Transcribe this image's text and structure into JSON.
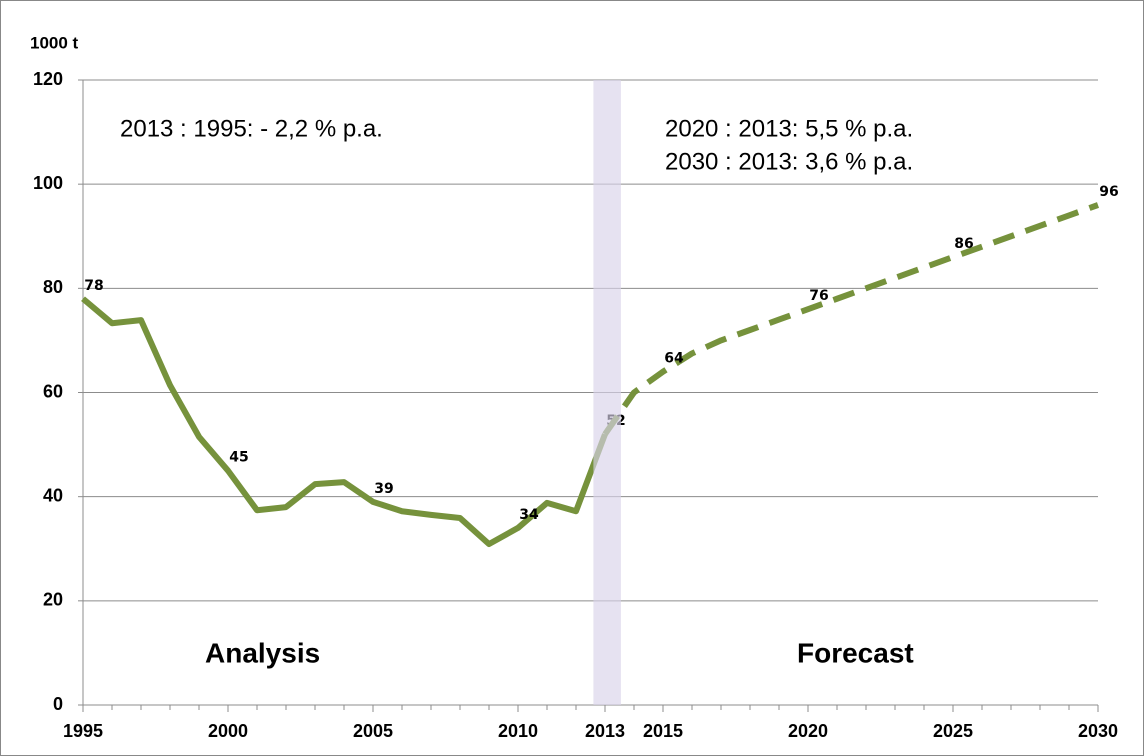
{
  "chart_data": {
    "type": "line",
    "y_label": "1000 t",
    "xlim": [
      1995,
      2030
    ],
    "xticks": [
      1995,
      2000,
      2005,
      2010,
      2013,
      2015,
      2020,
      2025,
      2030
    ],
    "ylim": [
      0,
      120
    ],
    "yticks": [
      0,
      20,
      40,
      60,
      80,
      100,
      120
    ],
    "grid": true,
    "highlight_band": {
      "x": [
        2012.6,
        2013.55
      ],
      "color": "#d9d2e9"
    },
    "series": [
      {
        "color": "#76923c",
        "dashed": false,
        "x": [
          1995,
          1996,
          1997,
          1998,
          1999,
          2000,
          2001,
          2002,
          2003,
          2004,
          2005,
          2006,
          2007,
          2008,
          2009,
          2010,
          2011,
          2012,
          2013
        ],
        "values": [
          78,
          73.3,
          73.9,
          61.4,
          51.5,
          45,
          37.4,
          38,
          42.4,
          42.8,
          39,
          37.2,
          36.5,
          35.9,
          30.9,
          34,
          38.8,
          37.2,
          52
        ],
        "value_labels": [
          "78",
          null,
          null,
          null,
          null,
          "45",
          null,
          null,
          null,
          null,
          "39",
          null,
          null,
          null,
          null,
          "34",
          null,
          null,
          "52"
        ]
      },
      {
        "color": "#76923c",
        "dashed": true,
        "x": [
          2013,
          2014,
          2015,
          2016,
          2017,
          2018,
          2019,
          2020,
          2021,
          2022,
          2023,
          2024,
          2025,
          2026,
          2027,
          2028,
          2029,
          2030
        ],
        "values": [
          52,
          60,
          64,
          67.5,
          70,
          72,
          74,
          76,
          78,
          80,
          82,
          84,
          86,
          88,
          90,
          92,
          94,
          96
        ],
        "value_labels": [
          null,
          null,
          "64",
          null,
          null,
          null,
          null,
          "76",
          null,
          null,
          null,
          null,
          "86",
          null,
          null,
          null,
          null,
          "96"
        ]
      }
    ],
    "annotations": [
      "2013 : 1995:   - 2,2 % p.a.",
      "2020 : 2013:   5,5 % p.a.",
      "2030 : 2013:   3,6 % p.a.",
      "Analysis",
      "Forecast"
    ]
  }
}
